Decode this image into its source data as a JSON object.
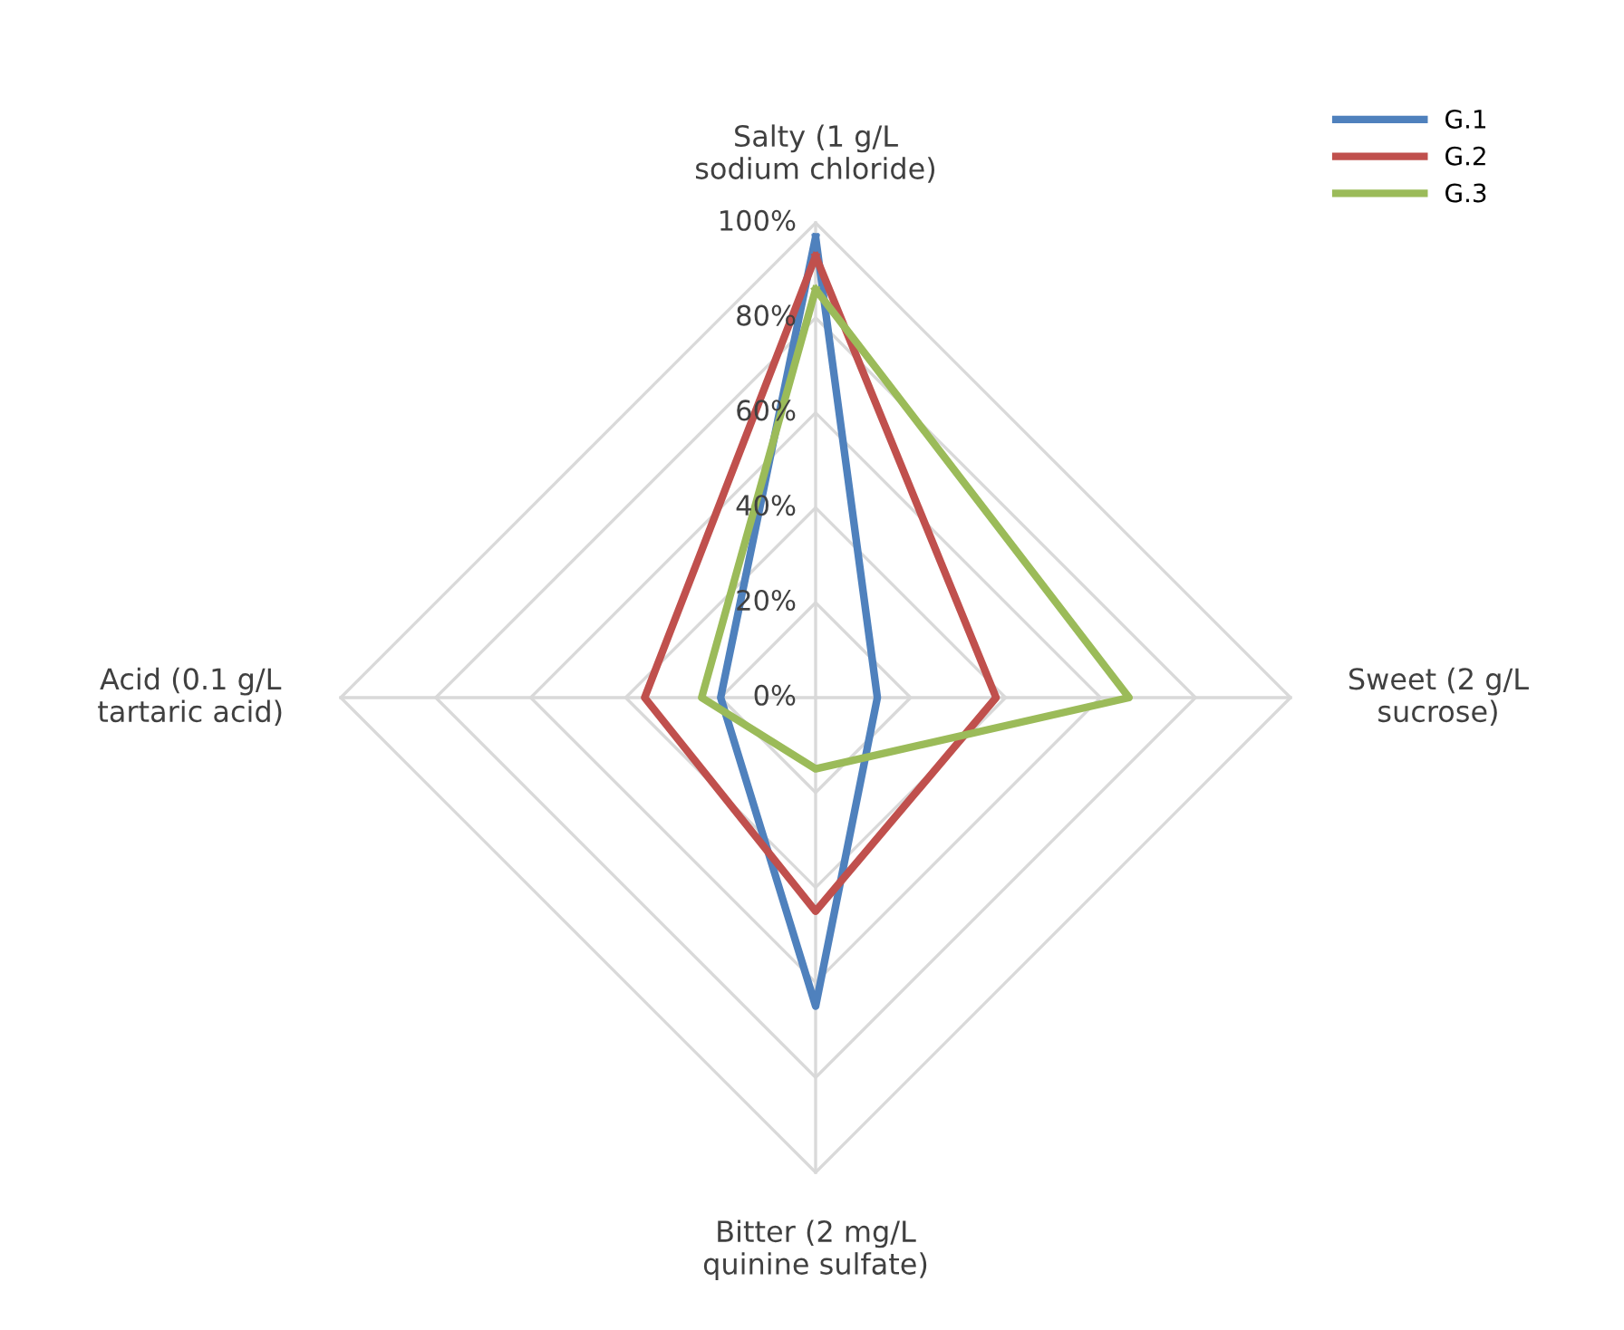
{
  "chart_data": {
    "type": "radar",
    "categories": [
      "Salty (1 g/L\nsodium chloride)",
      "Sweet (2 g/L\nsucrose)",
      "Bitter (2 mg/L\nquinine sulfate)",
      "Acid (0.1 g/L\ntartaric acid)"
    ],
    "series": [
      {
        "name": "G.1",
        "color": "#4f81bd",
        "values": [
          0.97,
          0.13,
          0.65,
          0.2
        ]
      },
      {
        "name": "G.2",
        "color": "#c0504d",
        "values": [
          0.93,
          0.38,
          0.45,
          0.36
        ]
      },
      {
        "name": "G.3",
        "color": "#9bbb59",
        "values": [
          0.86,
          0.66,
          0.15,
          0.24
        ]
      }
    ],
    "ylim": [
      0,
      1
    ],
    "yticks": [
      {
        "value": 0,
        "label": "0%"
      },
      {
        "value": 0.2,
        "label": "20%"
      },
      {
        "value": 0.4,
        "label": "40%"
      },
      {
        "value": 0.6,
        "label": "60%"
      },
      {
        "value": 0.8,
        "label": "80%"
      },
      {
        "value": 1,
        "label": "100%"
      }
    ],
    "grid": true,
    "legend": "top right",
    "marker": "none",
    "line_style": "solid"
  }
}
